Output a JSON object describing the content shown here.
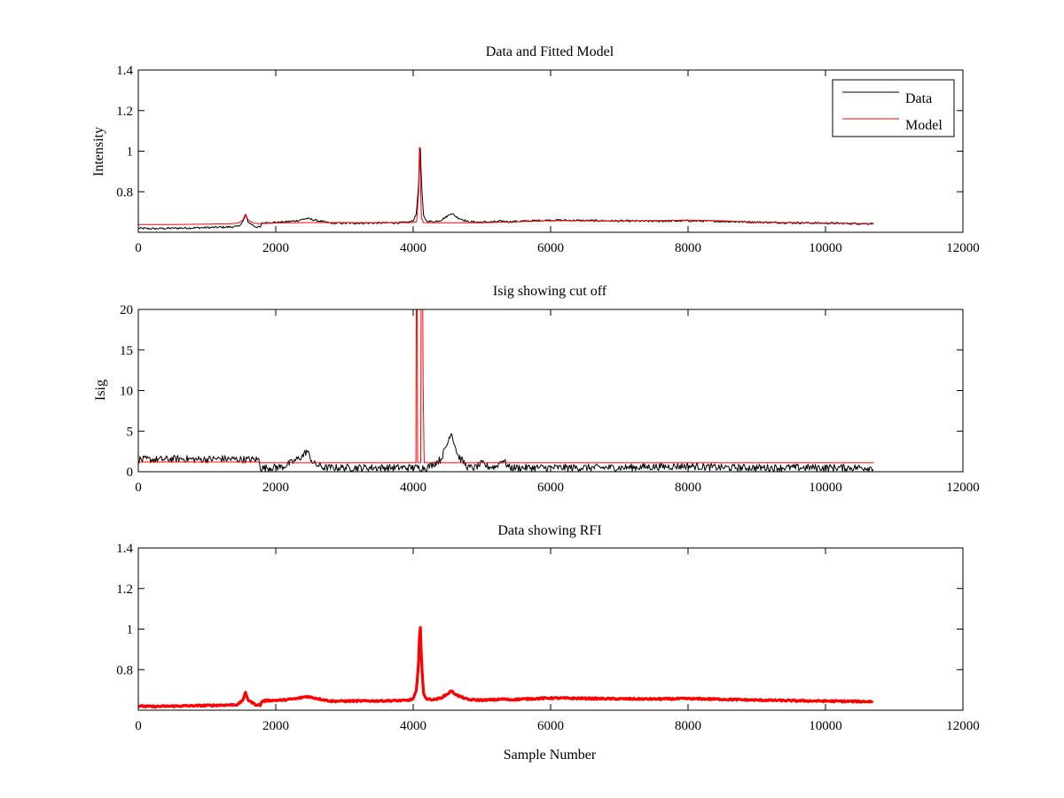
{
  "chart_data": [
    {
      "type": "line",
      "title": "Data and Fitted Model",
      "xlabel": "",
      "ylabel": "Intensity",
      "xlim": [
        0,
        12000
      ],
      "ylim": [
        0.6,
        1.4
      ],
      "x_ticks": [
        0,
        2000,
        4000,
        6000,
        8000,
        10000,
        12000
      ],
      "x_tick_labels": [
        "0",
        "2000",
        "4000",
        "6000",
        "8000",
        "10000",
        "12000"
      ],
      "y_ticks": [
        0.8,
        1.0,
        1.2,
        1.4
      ],
      "y_tick_labels": [
        "0.8",
        "1",
        "1.2",
        "1.4"
      ],
      "grid": false,
      "legend": "top-right",
      "series": [
        {
          "name": "Data",
          "color": "#000000",
          "style": "line",
          "x": [
            0,
            200,
            500,
            800,
            1100,
            1300,
            1450,
            1520,
            1560,
            1600,
            1700,
            1780,
            1800,
            1900,
            2100,
            2300,
            2450,
            2600,
            2800,
            3000,
            3500,
            3900,
            4000,
            4050,
            4080,
            4100,
            4120,
            4150,
            4200,
            4300,
            4400,
            4500,
            4550,
            4650,
            4800,
            5000,
            5200,
            5300,
            5400,
            5600,
            6000,
            6500,
            7000,
            7500,
            8000,
            8500,
            9000,
            9500,
            10000,
            10500,
            10700
          ],
          "y": [
            0.62,
            0.618,
            0.62,
            0.622,
            0.624,
            0.626,
            0.628,
            0.65,
            0.685,
            0.65,
            0.628,
            0.625,
            0.645,
            0.648,
            0.65,
            0.657,
            0.668,
            0.658,
            0.645,
            0.645,
            0.646,
            0.648,
            0.655,
            0.7,
            0.85,
            1.05,
            0.85,
            0.68,
            0.655,
            0.652,
            0.66,
            0.68,
            0.695,
            0.672,
            0.652,
            0.65,
            0.652,
            0.655,
            0.652,
            0.655,
            0.66,
            0.658,
            0.656,
            0.655,
            0.657,
            0.654,
            0.65,
            0.647,
            0.645,
            0.643,
            0.643
          ],
          "noise": 0.005
        },
        {
          "name": "Model",
          "color": "#ff0000",
          "style": "line",
          "x": [
            0,
            500,
            1000,
            1300,
            1450,
            1520,
            1560,
            1600,
            1680,
            1780,
            1900,
            2500,
            3000,
            3500,
            4000,
            4050,
            4080,
            4090,
            4100,
            4110,
            4120,
            4150,
            4300,
            5000,
            5500,
            6000,
            7000,
            8000,
            8500,
            9000,
            10000,
            10700
          ],
          "y": [
            0.638,
            0.638,
            0.64,
            0.642,
            0.645,
            0.66,
            0.69,
            0.66,
            0.645,
            0.643,
            0.646,
            0.648,
            0.648,
            0.647,
            0.648,
            0.652,
            0.8,
            1.02,
            0.96,
            0.8,
            0.67,
            0.648,
            0.647,
            0.647,
            0.652,
            0.658,
            0.656,
            0.66,
            0.657,
            0.65,
            0.645,
            0.643
          ],
          "noise": 0
        }
      ]
    },
    {
      "type": "line",
      "title": "Isig showing cut off",
      "xlabel": "",
      "ylabel": "Isig",
      "xlim": [
        0,
        12000
      ],
      "ylim": [
        0,
        20
      ],
      "x_ticks": [
        0,
        2000,
        4000,
        6000,
        8000,
        10000,
        12000
      ],
      "x_tick_labels": [
        "0",
        "2000",
        "4000",
        "6000",
        "8000",
        "10000",
        "12000"
      ],
      "y_ticks": [
        0,
        5,
        10,
        15,
        20
      ],
      "y_tick_labels": [
        "0",
        "5",
        "10",
        "15",
        "20"
      ],
      "grid": false,
      "series": [
        {
          "color": "#000000",
          "style": "line",
          "x": [
            0,
            300,
            600,
            900,
            1200,
            1500,
            1760,
            1780,
            1900,
            2100,
            2250,
            2400,
            2450,
            2550,
            2700,
            3000,
            3500,
            4000,
            4200,
            4400,
            4500,
            4550,
            4650,
            4800,
            4900,
            5000,
            5100,
            5200,
            5300,
            5400,
            6000,
            7000,
            7500,
            8000,
            8500,
            9000,
            9500,
            10000,
            10500,
            10700
          ],
          "y": [
            1.5,
            1.5,
            1.6,
            1.5,
            1.6,
            1.5,
            1.5,
            0.4,
            0.5,
            0.6,
            1.2,
            2.0,
            2.6,
            1.0,
            0.5,
            0.5,
            0.5,
            0.5,
            0.5,
            1.5,
            3.5,
            5.0,
            2.0,
            0.5,
            0.5,
            1.0,
            0.6,
            0.6,
            1.5,
            0.5,
            0.5,
            0.5,
            0.6,
            0.7,
            0.5,
            0.5,
            0.5,
            0.5,
            0.5,
            0.5
          ],
          "noise": 0.45
        },
        {
          "color": "#ff0000",
          "style": "line",
          "x": [
            0,
            500,
            1000,
            1500,
            1760,
            1780,
            2000,
            3000,
            4000,
            4040,
            4045,
            4060,
            4065,
            4110,
            4115,
            4140,
            4145,
            4160,
            4200,
            5000,
            6000,
            8000,
            10000,
            10700
          ],
          "y": [
            1.2,
            1.2,
            1.2,
            1.2,
            1.2,
            1.1,
            1.1,
            1.1,
            1.1,
            1.1,
            20,
            20,
            1.1,
            1.1,
            20,
            20,
            10.5,
            1.1,
            1.1,
            1.1,
            1.1,
            1.1,
            1.1,
            1.1
          ],
          "noise": 0
        }
      ]
    },
    {
      "type": "line",
      "title": "Data showing RFI",
      "xlabel": "Sample Number",
      "ylabel": "",
      "xlim": [
        0,
        12000
      ],
      "ylim": [
        0.6,
        1.4
      ],
      "x_ticks": [
        0,
        2000,
        4000,
        6000,
        8000,
        10000,
        12000
      ],
      "x_tick_labels": [
        "0",
        "2000",
        "4000",
        "6000",
        "8000",
        "10000",
        "12000"
      ],
      "y_ticks": [
        0.8,
        1.0,
        1.2,
        1.4
      ],
      "y_tick_labels": [
        "0.8",
        "1",
        "1.2",
        "1.4"
      ],
      "grid": false,
      "series": [
        {
          "color": "#ff0000",
          "style": "thick",
          "x": [
            0,
            200,
            500,
            800,
            1100,
            1300,
            1450,
            1520,
            1560,
            1600,
            1700,
            1780,
            1800,
            1900,
            2100,
            2300,
            2450,
            2600,
            2800,
            3000,
            3500,
            3900,
            4000,
            4050,
            4080,
            4100,
            4120,
            4150,
            4200,
            4300,
            4400,
            4500,
            4550,
            4650,
            4800,
            5000,
            5200,
            5300,
            5400,
            5600,
            6000,
            6500,
            7000,
            7500,
            8000,
            8500,
            9000,
            9500,
            10000,
            10500,
            10700
          ],
          "y": [
            0.62,
            0.618,
            0.62,
            0.622,
            0.624,
            0.626,
            0.628,
            0.65,
            0.685,
            0.65,
            0.628,
            0.625,
            0.645,
            0.648,
            0.65,
            0.657,
            0.668,
            0.658,
            0.645,
            0.645,
            0.646,
            0.648,
            0.655,
            0.7,
            0.85,
            1.05,
            0.85,
            0.68,
            0.655,
            0.652,
            0.66,
            0.68,
            0.695,
            0.672,
            0.652,
            0.65,
            0.652,
            0.655,
            0.652,
            0.655,
            0.66,
            0.658,
            0.656,
            0.655,
            0.657,
            0.654,
            0.65,
            0.647,
            0.645,
            0.643,
            0.643
          ],
          "noise": 0.004
        }
      ]
    }
  ]
}
